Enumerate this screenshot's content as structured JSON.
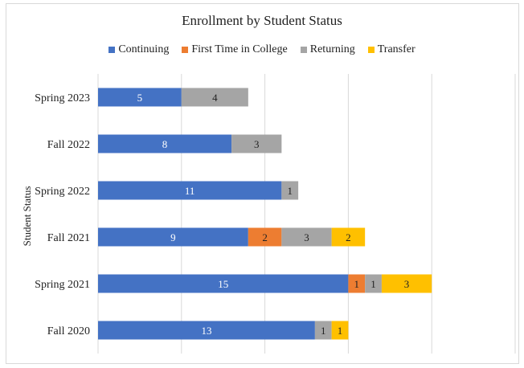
{
  "chart_data": {
    "type": "bar",
    "orientation": "horizontal",
    "stacked": true,
    "title": "Enrollment by Student Status",
    "ylabel": "Student Status",
    "xlabel": "",
    "categories": [
      "Spring 2023",
      "Fall 2022",
      "Spring 2022",
      "Fall 2021",
      "Spring 2021",
      "Fall 2020"
    ],
    "series": [
      {
        "name": "Continuing",
        "color": "#4472C4",
        "label_color": "#ffffff",
        "values": [
          5,
          8,
          11,
          9,
          15,
          13
        ]
      },
      {
        "name": "First Time in College",
        "color": "#ED7D31",
        "label_color": "#222222",
        "values": [
          0,
          0,
          0,
          2,
          1,
          0
        ]
      },
      {
        "name": "Returning",
        "color": "#A5A5A5",
        "label_color": "#222222",
        "values": [
          4,
          3,
          1,
          3,
          1,
          1
        ]
      },
      {
        "name": "Transfer",
        "color": "#FFC000",
        "label_color": "#222222",
        "values": [
          0,
          0,
          0,
          2,
          3,
          1
        ]
      }
    ],
    "xlim": [
      0,
      25
    ],
    "x_gridlines": [
      0,
      5,
      10,
      15,
      20,
      25
    ],
    "grid": true,
    "legend_position": "top"
  }
}
